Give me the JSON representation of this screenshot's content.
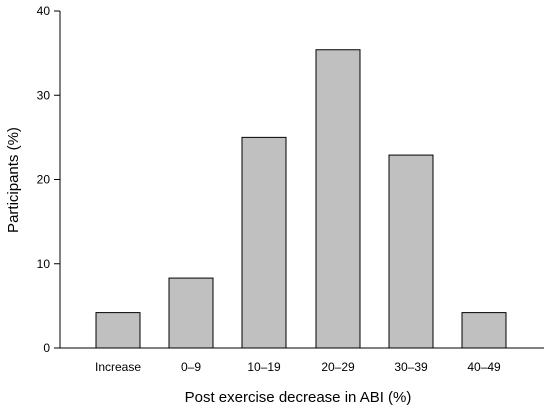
{
  "chart_data": {
    "type": "bar",
    "title": "",
    "xlabel": "Post exercise decrease in ABI (%)",
    "ylabel": "Participants (%)",
    "categories": [
      "Increase",
      "0–9",
      "10–19",
      "20–29",
      "30–39",
      "40–49"
    ],
    "values": [
      4.2,
      8.3,
      25.0,
      35.4,
      22.9,
      4.2
    ],
    "ylim": [
      0,
      40
    ],
    "yticks": [
      "0",
      "10",
      "20",
      "30",
      "40"
    ],
    "grid": false,
    "legend": "none",
    "bar_color": "#c0c0c0",
    "edge_color": "#000000"
  }
}
